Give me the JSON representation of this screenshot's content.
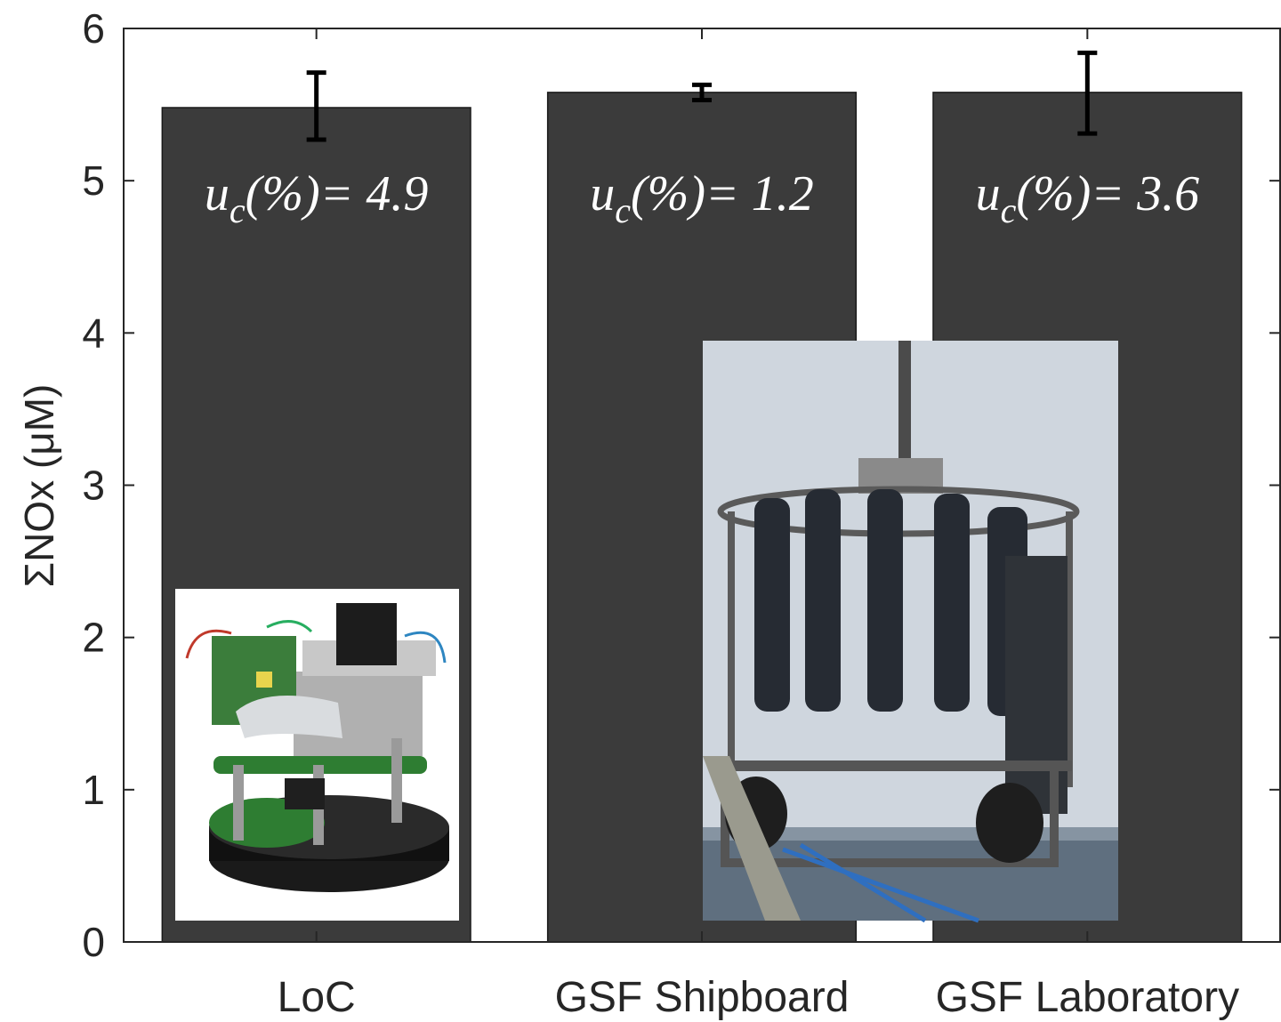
{
  "chart_data": {
    "type": "bar",
    "categories": [
      "LoC",
      "GSF Shipboard",
      "GSF Laboratory"
    ],
    "values": [
      5.48,
      5.58,
      5.58
    ],
    "errors": [
      [
        5.27,
        5.71
      ],
      [
        5.53,
        5.63
      ],
      [
        5.31,
        5.84
      ]
    ],
    "annotations": [
      {
        "var": "u",
        "sub": "c",
        "text": "(%)= 4.9"
      },
      {
        "var": "u",
        "sub": "c",
        "text": "(%)= 1.2"
      },
      {
        "var": "u",
        "sub": "c",
        "text": "(%)= 3.6"
      }
    ],
    "title": "",
    "xlabel": "",
    "ylabel": "ΣNOx (μM)",
    "ylim": [
      0,
      6
    ],
    "yticks": [
      "0",
      "1",
      "2",
      "3",
      "4",
      "5",
      "6"
    ],
    "grid": false,
    "legend": "none",
    "bar_color": "#3b3b3b",
    "axis_color": "#262626",
    "photos": [
      "lab-on-chip-sensor-photo",
      "ctd-rosette-sampler-photo"
    ]
  }
}
